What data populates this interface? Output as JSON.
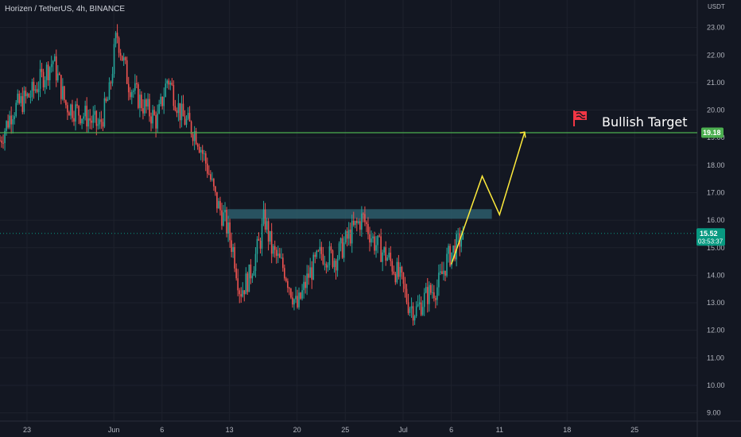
{
  "header": {
    "symbol": "Horizen / TetherUS, 4h, BINANCE"
  },
  "currency": "USDT",
  "annotation": "Bullish Target",
  "colors": {
    "background": "#131722",
    "grid": "#1e222d",
    "up": "#26a69a",
    "down": "#ef5350",
    "target_line": "#4caf50",
    "resistance_zone": "#2d5d6b",
    "projection": "#ffeb3b",
    "price_badge": "#089981",
    "target_badge": "#4caf50",
    "flag": "#f23645"
  },
  "price_badge": {
    "value": "15.52",
    "countdown": "03:53:37"
  },
  "target_badge": {
    "value": "19.18"
  },
  "chart_data": {
    "type": "candlestick",
    "title": "Horizen / TetherUS, 4h, BINANCE",
    "ylim": [
      8.7,
      24.0
    ],
    "y_ticks": [
      "23.00",
      "22.00",
      "21.00",
      "20.00",
      "19.00",
      "18.00",
      "17.00",
      "16.00",
      "15.00",
      "14.00",
      "13.00",
      "12.00",
      "11.00",
      "10.00",
      "9.00"
    ],
    "y_tick_values": [
      23,
      22,
      21,
      20,
      19,
      18,
      17,
      16,
      15,
      14,
      13,
      12,
      11,
      10,
      9
    ],
    "x_ticks": [
      "23",
      "Jun",
      "6",
      "13",
      "20",
      "25",
      "Jul",
      "6",
      "11",
      "18",
      "25"
    ],
    "x_tick_days": [
      -8,
      1,
      6,
      13,
      20,
      25,
      31,
      36,
      41,
      48,
      55
    ],
    "xlim_days": [
      -10.8,
      61.5
    ],
    "current_price": 15.52,
    "current_day": 37.3,
    "target_level": 19.18,
    "resistance_zone": {
      "start_day": 12.8,
      "end_day": 40.2,
      "low": 16.05,
      "high": 16.4
    },
    "projection_path": [
      {
        "day": 36.0,
        "price": 14.4
      },
      {
        "day": 39.2,
        "price": 17.6
      },
      {
        "day": 41.0,
        "price": 16.2
      },
      {
        "day": 43.6,
        "price": 19.2
      }
    ],
    "price_path": [
      {
        "day": -10.8,
        "price": 18.9
      },
      {
        "day": -9.5,
        "price": 20.0
      },
      {
        "day": -7.5,
        "price": 20.6
      },
      {
        "day": -5.3,
        "price": 21.8
      },
      {
        "day": -4.0,
        "price": 20.2
      },
      {
        "day": -2.0,
        "price": 19.8
      },
      {
        "day": -0.5,
        "price": 19.4
      },
      {
        "day": 0.5,
        "price": 20.5
      },
      {
        "day": 1.3,
        "price": 22.8
      },
      {
        "day": 2.5,
        "price": 21.0
      },
      {
        "day": 4.0,
        "price": 20.2
      },
      {
        "day": 5.5,
        "price": 19.6
      },
      {
        "day": 6.6,
        "price": 21.2
      },
      {
        "day": 8.0,
        "price": 19.8
      },
      {
        "day": 9.6,
        "price": 19.1
      },
      {
        "day": 10.8,
        "price": 17.8
      },
      {
        "day": 11.6,
        "price": 16.7
      },
      {
        "day": 12.5,
        "price": 16.0
      },
      {
        "day": 13.4,
        "price": 14.9
      },
      {
        "day": 14.1,
        "price": 13.4
      },
      {
        "day": 15.0,
        "price": 13.9
      },
      {
        "day": 16.2,
        "price": 15.3
      },
      {
        "day": 16.6,
        "price": 16.1
      },
      {
        "day": 17.4,
        "price": 14.9
      },
      {
        "day": 18.7,
        "price": 14.2
      },
      {
        "day": 20.0,
        "price": 12.8
      },
      {
        "day": 21.2,
        "price": 14.0
      },
      {
        "day": 22.5,
        "price": 14.8
      },
      {
        "day": 24.0,
        "price": 14.6
      },
      {
        "day": 25.5,
        "price": 15.5
      },
      {
        "day": 26.8,
        "price": 16.1
      },
      {
        "day": 28.0,
        "price": 15.2
      },
      {
        "day": 29.5,
        "price": 14.6
      },
      {
        "day": 30.8,
        "price": 13.8
      },
      {
        "day": 31.5,
        "price": 13.0
      },
      {
        "day": 32.3,
        "price": 12.7
      },
      {
        "day": 33.5,
        "price": 13.3
      },
      {
        "day": 34.6,
        "price": 13.6
      },
      {
        "day": 35.6,
        "price": 14.6
      },
      {
        "day": 36.6,
        "price": 15.1
      },
      {
        "day": 37.3,
        "price": 15.52
      }
    ]
  }
}
